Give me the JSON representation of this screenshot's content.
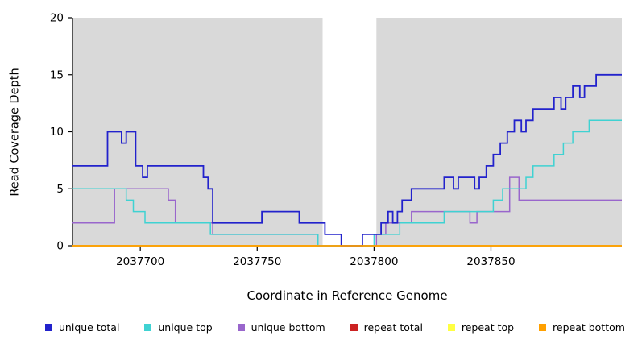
{
  "chart_data": {
    "type": "line",
    "style": "step",
    "xlabel": "Coordinate in Reference Genome",
    "ylabel": "Read Coverage Depth",
    "xlim": [
      2037671,
      2037906
    ],
    "ylim": [
      0,
      20
    ],
    "x_ticks": [
      {
        "value": 2037700,
        "label": "2037700"
      },
      {
        "value": 2037750,
        "label": "2037750"
      },
      {
        "value": 2037800,
        "label": "2037800"
      },
      {
        "value": 2037850,
        "label": "2037850"
      }
    ],
    "y_ticks": [
      {
        "value": 0,
        "label": "0"
      },
      {
        "value": 5,
        "label": "5"
      },
      {
        "value": 10,
        "label": "10"
      },
      {
        "value": 15,
        "label": "15"
      },
      {
        "value": 20,
        "label": "20"
      }
    ],
    "shaded_regions": [
      [
        2037671,
        2037778
      ],
      [
        2037801,
        2037906
      ]
    ],
    "colors": {
      "panel_shade": "#d9d9d9",
      "axis": "#000000",
      "background": "#ffffff"
    },
    "legend": [
      {
        "label": "unique total",
        "color": "#2222cc"
      },
      {
        "label": "unique top",
        "color": "#3fd2d2"
      },
      {
        "label": "unique bottom",
        "color": "#9966cc"
      },
      {
        "label": "repeat total",
        "color": "#cc2222"
      },
      {
        "label": "repeat top",
        "color": "#ffff42"
      },
      {
        "label": "repeat bottom",
        "color": "#ffa000"
      }
    ],
    "series": [
      {
        "name": "repeat total",
        "color": "#cc2222",
        "width": 1.5,
        "steps": [
          [
            2037671,
            0
          ]
        ]
      },
      {
        "name": "repeat top",
        "color": "#ffff42",
        "width": 1.5,
        "steps": [
          [
            2037671,
            0
          ]
        ]
      },
      {
        "name": "unique bottom",
        "color": "#9966cc",
        "width": 1.5,
        "steps": [
          [
            2037671,
            2
          ],
          [
            2037689,
            5
          ],
          [
            2037712,
            4
          ],
          [
            2037715,
            2
          ],
          [
            2037731,
            1
          ],
          [
            2037776,
            0
          ],
          [
            2037801,
            1
          ],
          [
            2037805,
            2
          ],
          [
            2037816,
            3
          ],
          [
            2037841,
            2
          ],
          [
            2037844,
            3
          ],
          [
            2037858,
            6
          ],
          [
            2037862,
            4
          ]
        ]
      },
      {
        "name": "unique top",
        "color": "#3fd2d2",
        "width": 1.5,
        "steps": [
          [
            2037671,
            5
          ],
          [
            2037694,
            4
          ],
          [
            2037697,
            3
          ],
          [
            2037702,
            2
          ],
          [
            2037730,
            1
          ],
          [
            2037776,
            0
          ],
          [
            2037800,
            1
          ],
          [
            2037811,
            2
          ],
          [
            2037830,
            3
          ],
          [
            2037851,
            4
          ],
          [
            2037855,
            5
          ],
          [
            2037865,
            6
          ],
          [
            2037868,
            7
          ],
          [
            2037877,
            8
          ],
          [
            2037881,
            9
          ],
          [
            2037885,
            10
          ],
          [
            2037892,
            11
          ]
        ]
      },
      {
        "name": "unique total",
        "color": "#2222cc",
        "width": 1.8,
        "steps": [
          [
            2037671,
            7
          ],
          [
            2037686,
            10
          ],
          [
            2037692,
            9
          ],
          [
            2037694,
            10
          ],
          [
            2037698,
            7
          ],
          [
            2037701,
            6
          ],
          [
            2037703,
            7
          ],
          [
            2037727,
            6
          ],
          [
            2037729,
            5
          ],
          [
            2037731,
            2
          ],
          [
            2037752,
            3
          ],
          [
            2037768,
            2
          ],
          [
            2037779,
            1
          ],
          [
            2037786,
            0
          ],
          [
            2037795,
            1
          ],
          [
            2037803,
            2
          ],
          [
            2037806,
            3
          ],
          [
            2037808,
            2
          ],
          [
            2037810,
            3
          ],
          [
            2037812,
            4
          ],
          [
            2037816,
            5
          ],
          [
            2037830,
            6
          ],
          [
            2037834,
            5
          ],
          [
            2037836,
            6
          ],
          [
            2037843,
            5
          ],
          [
            2037845,
            6
          ],
          [
            2037848,
            7
          ],
          [
            2037851,
            8
          ],
          [
            2037854,
            9
          ],
          [
            2037857,
            10
          ],
          [
            2037860,
            11
          ],
          [
            2037863,
            10
          ],
          [
            2037865,
            11
          ],
          [
            2037868,
            12
          ],
          [
            2037877,
            13
          ],
          [
            2037880,
            12
          ],
          [
            2037882,
            13
          ],
          [
            2037885,
            14
          ],
          [
            2037888,
            13
          ],
          [
            2037890,
            14
          ],
          [
            2037895,
            15
          ]
        ]
      },
      {
        "name": "repeat bottom",
        "color": "#ffa000",
        "width": 1.8,
        "steps": [
          [
            2037671,
            0
          ]
        ]
      }
    ]
  }
}
